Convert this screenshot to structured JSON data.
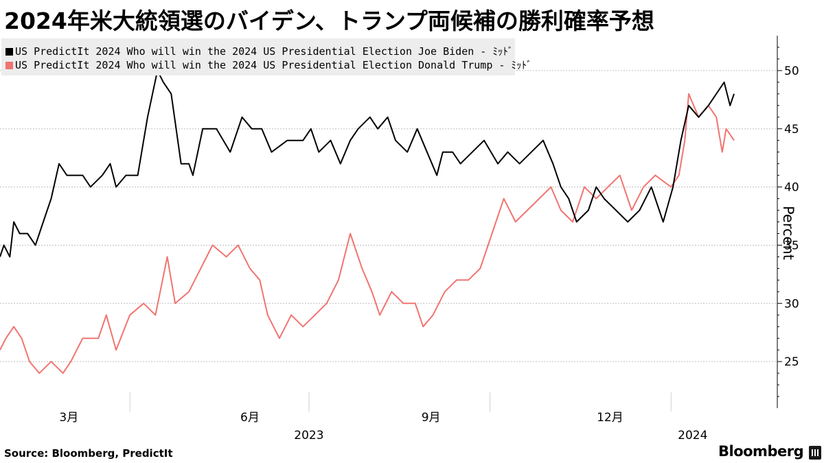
{
  "title": "2024年米大統領選のバイデン、トランプ両候補の勝利確率予想",
  "source": "Source: Bloomberg, PredictIt",
  "brand": "Bloomberg",
  "chart_data": {
    "type": "line",
    "title": "2024年米大統領選のバイデン、トランプ両候補の勝利確率予想",
    "ylabel": "Percent",
    "xlabel": "",
    "ylim": [
      21,
      53
    ],
    "yticks": [
      25,
      30,
      35,
      40,
      45,
      50
    ],
    "xticks": [
      {
        "label": "3月",
        "date": "2023-03-01"
      },
      {
        "label": "6月",
        "date": "2023-06-01"
      },
      {
        "label": "9月",
        "date": "2023-09-01"
      },
      {
        "label": "12月",
        "date": "2023-12-01"
      }
    ],
    "year_labels": [
      {
        "label": "2023",
        "date": "2023-07-01"
      },
      {
        "label": "2024",
        "date": "2024-01-12"
      }
    ],
    "xlim": [
      "2023-01-25",
      "2024-02-24"
    ],
    "grid": true,
    "legend_position": "top-left",
    "series": [
      {
        "name": "US PredictIt 2024 Who will win the 2024 US Presidential Election Joe Biden - ﾐｯﾄﾞ",
        "color": "#000000",
        "points": [
          [
            "2023-01-25",
            34
          ],
          [
            "2023-01-27",
            35
          ],
          [
            "2023-01-30",
            34
          ],
          [
            "2023-02-01",
            37
          ],
          [
            "2023-02-04",
            36
          ],
          [
            "2023-02-08",
            36
          ],
          [
            "2023-02-12",
            35
          ],
          [
            "2023-02-16",
            37
          ],
          [
            "2023-02-20",
            39
          ],
          [
            "2023-02-24",
            42
          ],
          [
            "2023-02-28",
            41
          ],
          [
            "2023-03-08",
            41
          ],
          [
            "2023-03-12",
            40
          ],
          [
            "2023-03-18",
            41
          ],
          [
            "2023-03-22",
            42
          ],
          [
            "2023-03-25",
            40
          ],
          [
            "2023-03-30",
            41
          ],
          [
            "2023-04-05",
            41
          ],
          [
            "2023-04-10",
            46
          ],
          [
            "2023-04-15",
            50
          ],
          [
            "2023-04-18",
            49
          ],
          [
            "2023-04-22",
            48
          ],
          [
            "2023-04-27",
            42
          ],
          [
            "2023-05-01",
            42
          ],
          [
            "2023-05-03",
            41
          ],
          [
            "2023-05-08",
            45
          ],
          [
            "2023-05-15",
            45
          ],
          [
            "2023-05-22",
            43
          ],
          [
            "2023-05-28",
            46
          ],
          [
            "2023-06-02",
            45
          ],
          [
            "2023-06-07",
            45
          ],
          [
            "2023-06-12",
            43
          ],
          [
            "2023-06-20",
            44
          ],
          [
            "2023-06-28",
            44
          ],
          [
            "2023-07-02",
            45
          ],
          [
            "2023-07-06",
            43
          ],
          [
            "2023-07-12",
            44
          ],
          [
            "2023-07-17",
            42
          ],
          [
            "2023-07-22",
            44
          ],
          [
            "2023-07-26",
            45
          ],
          [
            "2023-08-01",
            46
          ],
          [
            "2023-08-05",
            45
          ],
          [
            "2023-08-10",
            46
          ],
          [
            "2023-08-14",
            44
          ],
          [
            "2023-08-20",
            43
          ],
          [
            "2023-08-25",
            45
          ],
          [
            "2023-08-30",
            43
          ],
          [
            "2023-09-04",
            41
          ],
          [
            "2023-09-07",
            43
          ],
          [
            "2023-09-12",
            43
          ],
          [
            "2023-09-16",
            42
          ],
          [
            "2023-09-22",
            43
          ],
          [
            "2023-09-28",
            44
          ],
          [
            "2023-10-05",
            42
          ],
          [
            "2023-10-10",
            43
          ],
          [
            "2023-10-16",
            42
          ],
          [
            "2023-10-22",
            43
          ],
          [
            "2023-10-28",
            44
          ],
          [
            "2023-11-02",
            42
          ],
          [
            "2023-11-06",
            40
          ],
          [
            "2023-11-10",
            39
          ],
          [
            "2023-11-14",
            37
          ],
          [
            "2023-11-20",
            38
          ],
          [
            "2023-11-24",
            40
          ],
          [
            "2023-11-28",
            39
          ],
          [
            "2023-12-04",
            38
          ],
          [
            "2023-12-10",
            37
          ],
          [
            "2023-12-16",
            38
          ],
          [
            "2023-12-22",
            40
          ],
          [
            "2023-12-28",
            37
          ],
          [
            "2024-01-02",
            40
          ],
          [
            "2024-01-06",
            44
          ],
          [
            "2024-01-10",
            47
          ],
          [
            "2024-01-15",
            46
          ],
          [
            "2024-01-20",
            47
          ],
          [
            "2024-01-24",
            48
          ],
          [
            "2024-01-28",
            49
          ],
          [
            "2024-01-31",
            47
          ],
          [
            "2024-02-02",
            48
          ]
        ]
      },
      {
        "name": "US PredictIt 2024 Who will win the 2024 US Presidential Election Donald Trump - ﾐｯﾄﾞ",
        "color": "#f07470",
        "points": [
          [
            "2023-01-25",
            26
          ],
          [
            "2023-01-28",
            27
          ],
          [
            "2023-02-01",
            28
          ],
          [
            "2023-02-05",
            27
          ],
          [
            "2023-02-09",
            25
          ],
          [
            "2023-02-14",
            24
          ],
          [
            "2023-02-20",
            25
          ],
          [
            "2023-02-26",
            24
          ],
          [
            "2023-03-02",
            25
          ],
          [
            "2023-03-08",
            27
          ],
          [
            "2023-03-16",
            27
          ],
          [
            "2023-03-20",
            29
          ],
          [
            "2023-03-25",
            26
          ],
          [
            "2023-04-01",
            29
          ],
          [
            "2023-04-08",
            30
          ],
          [
            "2023-04-14",
            29
          ],
          [
            "2023-04-20",
            34
          ],
          [
            "2023-04-24",
            30
          ],
          [
            "2023-05-01",
            31
          ],
          [
            "2023-05-07",
            33
          ],
          [
            "2023-05-13",
            35
          ],
          [
            "2023-05-20",
            34
          ],
          [
            "2023-05-26",
            35
          ],
          [
            "2023-06-01",
            33
          ],
          [
            "2023-06-06",
            32
          ],
          [
            "2023-06-10",
            29
          ],
          [
            "2023-06-16",
            27
          ],
          [
            "2023-06-22",
            29
          ],
          [
            "2023-06-28",
            28
          ],
          [
            "2023-07-04",
            29
          ],
          [
            "2023-07-10",
            30
          ],
          [
            "2023-07-16",
            32
          ],
          [
            "2023-07-22",
            36
          ],
          [
            "2023-07-28",
            33
          ],
          [
            "2023-08-02",
            31
          ],
          [
            "2023-08-06",
            29
          ],
          [
            "2023-08-12",
            31
          ],
          [
            "2023-08-18",
            30
          ],
          [
            "2023-08-24",
            30
          ],
          [
            "2023-08-28",
            28
          ],
          [
            "2023-09-02",
            29
          ],
          [
            "2023-09-08",
            31
          ],
          [
            "2023-09-14",
            32
          ],
          [
            "2023-09-20",
            32
          ],
          [
            "2023-09-26",
            33
          ],
          [
            "2023-10-02",
            36
          ],
          [
            "2023-10-08",
            39
          ],
          [
            "2023-10-14",
            37
          ],
          [
            "2023-10-20",
            38
          ],
          [
            "2023-10-26",
            39
          ],
          [
            "2023-11-01",
            40
          ],
          [
            "2023-11-06",
            38
          ],
          [
            "2023-11-12",
            37
          ],
          [
            "2023-11-18",
            40
          ],
          [
            "2023-11-24",
            39
          ],
          [
            "2023-11-30",
            40
          ],
          [
            "2023-12-06",
            41
          ],
          [
            "2023-12-12",
            38
          ],
          [
            "2023-12-18",
            40
          ],
          [
            "2023-12-24",
            41
          ],
          [
            "2024-01-01",
            40
          ],
          [
            "2024-01-05",
            41
          ],
          [
            "2024-01-08",
            44
          ],
          [
            "2024-01-10",
            48
          ],
          [
            "2024-01-15",
            46
          ],
          [
            "2024-01-20",
            47
          ],
          [
            "2024-01-24",
            46
          ],
          [
            "2024-01-27",
            43
          ],
          [
            "2024-01-29",
            45
          ],
          [
            "2024-02-02",
            44
          ]
        ]
      }
    ]
  }
}
